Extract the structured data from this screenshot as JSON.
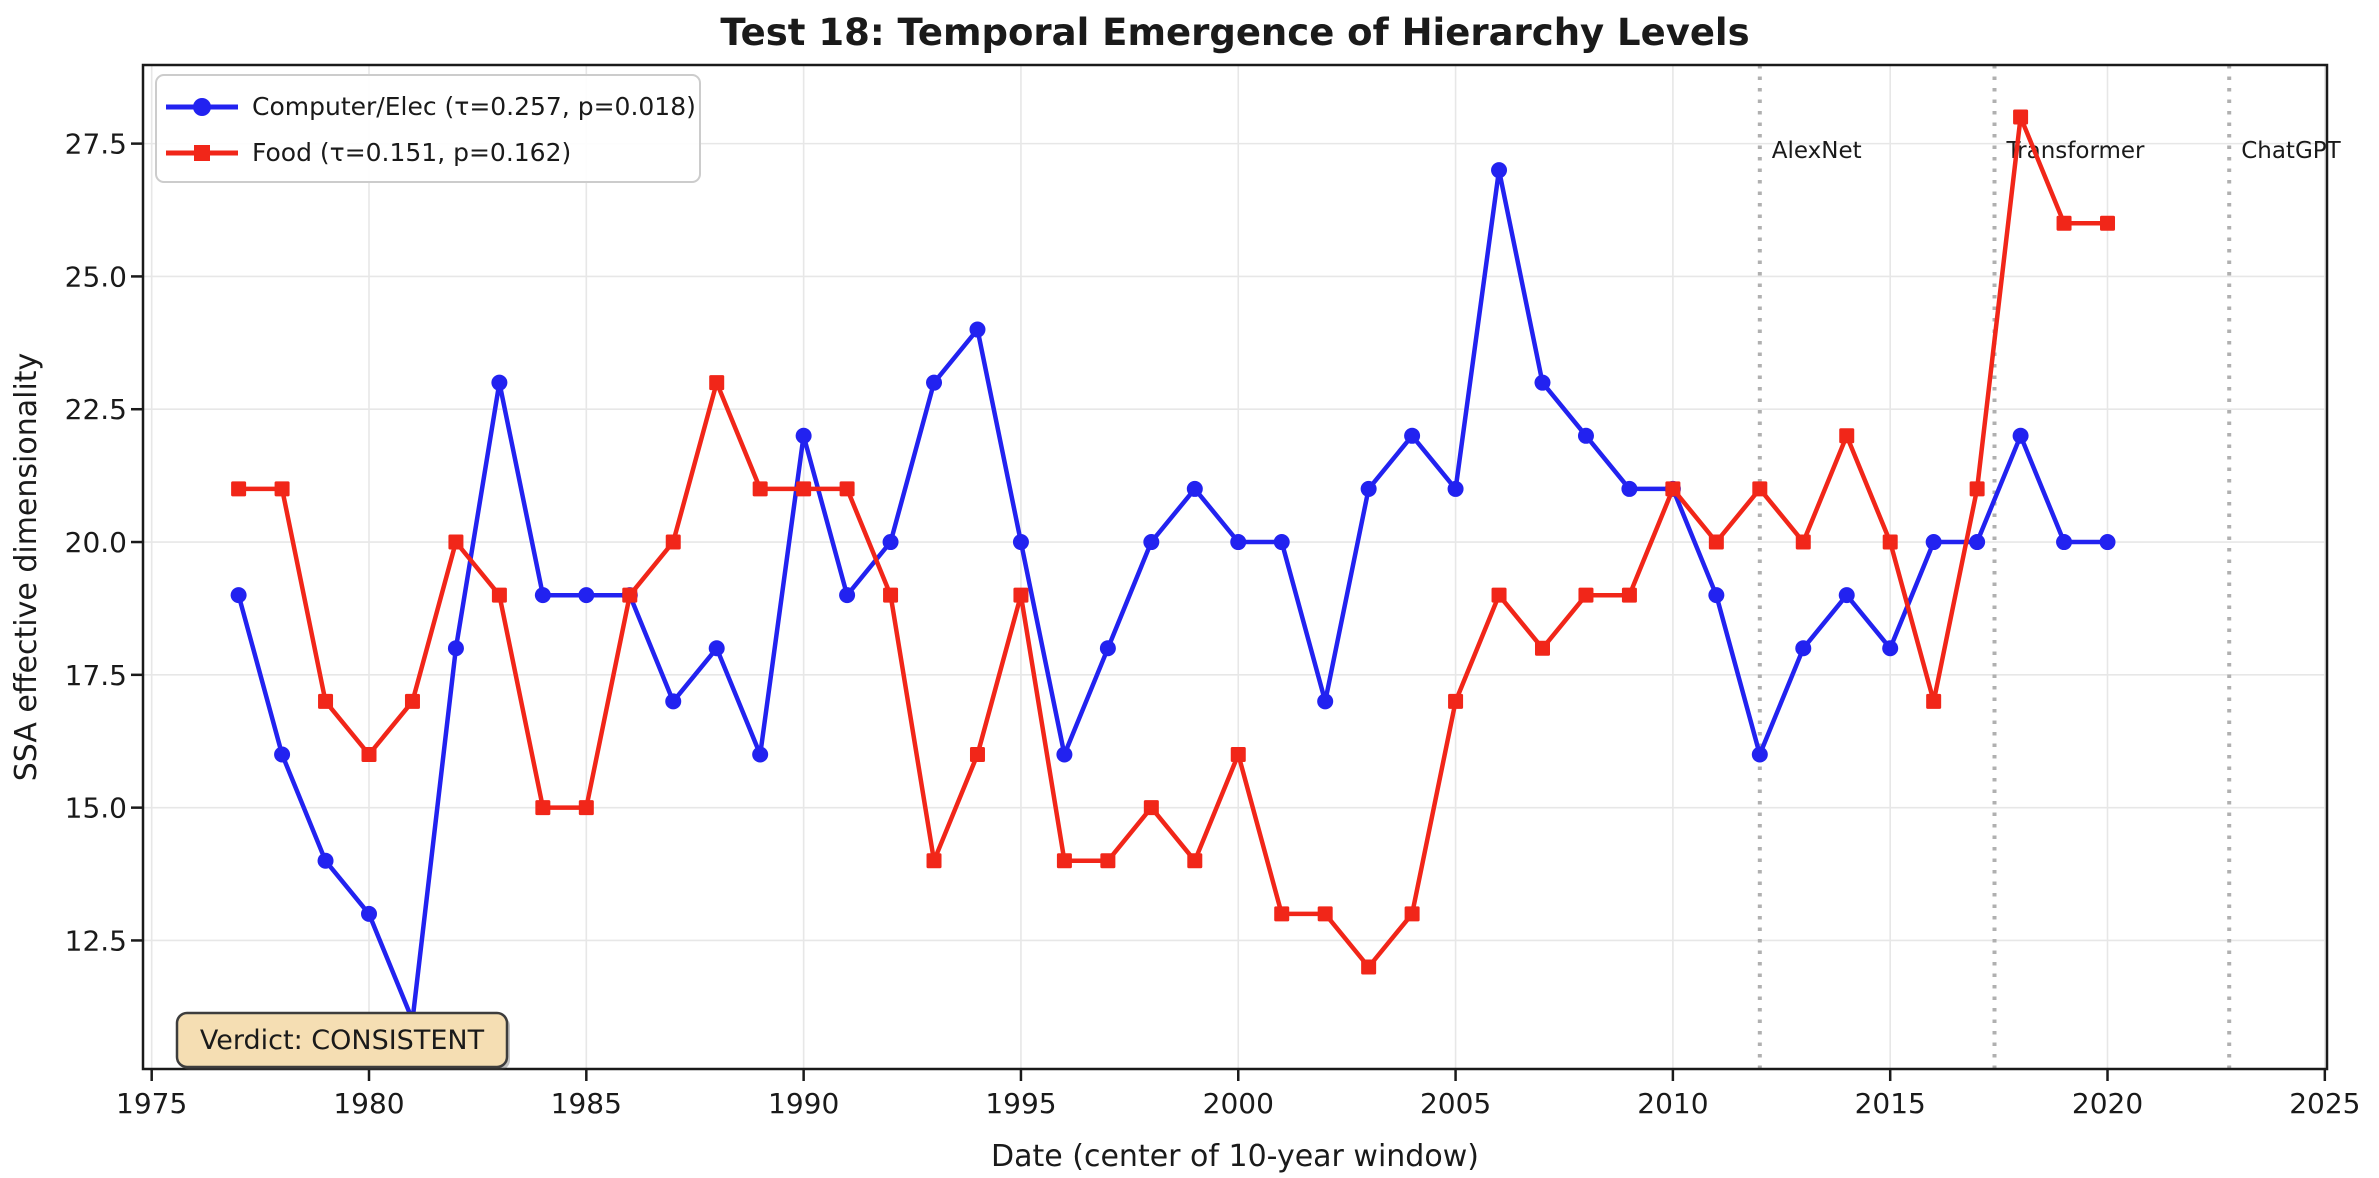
{
  "title": "Test 18: Temporal Emergence of Hierarchy Levels",
  "verdict": {
    "text": "Verdict: CONSISTENT",
    "bg": "#f5deb3",
    "border": "#3d3d3d"
  },
  "chart_data": {
    "type": "line",
    "title": "Test 18: Temporal Emergence of Hierarchy Levels",
    "xlabel": "Date (center of 10-year window)",
    "ylabel": "SSA effective dimensionality",
    "xlim": [
      1974.8,
      2025.05
    ],
    "ylim": [
      10.08,
      28.98
    ],
    "xticks": [
      1975,
      1980,
      1985,
      1990,
      1995,
      2000,
      2005,
      2010,
      2015,
      2020,
      2025
    ],
    "yticks": [
      12.5,
      15.0,
      17.5,
      20.0,
      22.5,
      25.0,
      27.5
    ],
    "grid": true,
    "gridline_color": "#e7e7e7",
    "legend_position": "upper left",
    "x": [
      1977,
      1978,
      1979,
      1980,
      1981,
      1982,
      1983,
      1984,
      1985,
      1986,
      1987,
      1988,
      1989,
      1990,
      1991,
      1992,
      1993,
      1994,
      1995,
      1996,
      1997,
      1998,
      1999,
      2000,
      2001,
      2002,
      2003,
      2004,
      2005,
      2006,
      2007,
      2008,
      2009,
      2010,
      2011,
      2012,
      2013,
      2014,
      2015,
      2016,
      2017,
      2018,
      2019,
      2020
    ],
    "series": [
      {
        "name": "Computer/Elec (τ=0.257, p=0.018)",
        "slug": "computer-elec",
        "color": "#2222f0",
        "marker": "circle",
        "values": [
          19,
          16,
          14,
          13,
          11,
          18,
          23,
          19,
          19,
          19,
          17,
          18,
          16,
          22,
          19,
          20,
          23,
          24,
          20,
          16,
          18,
          20,
          21,
          20,
          20,
          17,
          21,
          22,
          21,
          27,
          23,
          22,
          21,
          21,
          19,
          16,
          18,
          19,
          18,
          20,
          20,
          22,
          20,
          20
        ]
      },
      {
        "name": "Food (τ=0.151, p=0.162)",
        "slug": "food",
        "color": "#f12619",
        "marker": "square",
        "values": [
          21,
          21,
          17,
          16,
          17,
          20,
          19,
          15,
          15,
          19,
          20,
          23,
          21,
          21,
          21,
          19,
          14,
          16,
          19,
          14,
          14,
          15,
          14,
          16,
          13,
          13,
          12,
          13,
          17,
          19,
          18,
          19,
          19,
          21,
          20,
          21,
          20,
          22,
          20,
          17,
          21,
          28,
          26,
          26
        ]
      }
    ],
    "annotations": [
      {
        "label": "AlexNet",
        "x": 2012.0
      },
      {
        "label": "Transformer",
        "x": 2017.4
      },
      {
        "label": "ChatGPT",
        "x": 2022.8
      }
    ],
    "annotation_line_color": "#b0b0b0",
    "annotation_text_color": "#a3a3a3"
  }
}
